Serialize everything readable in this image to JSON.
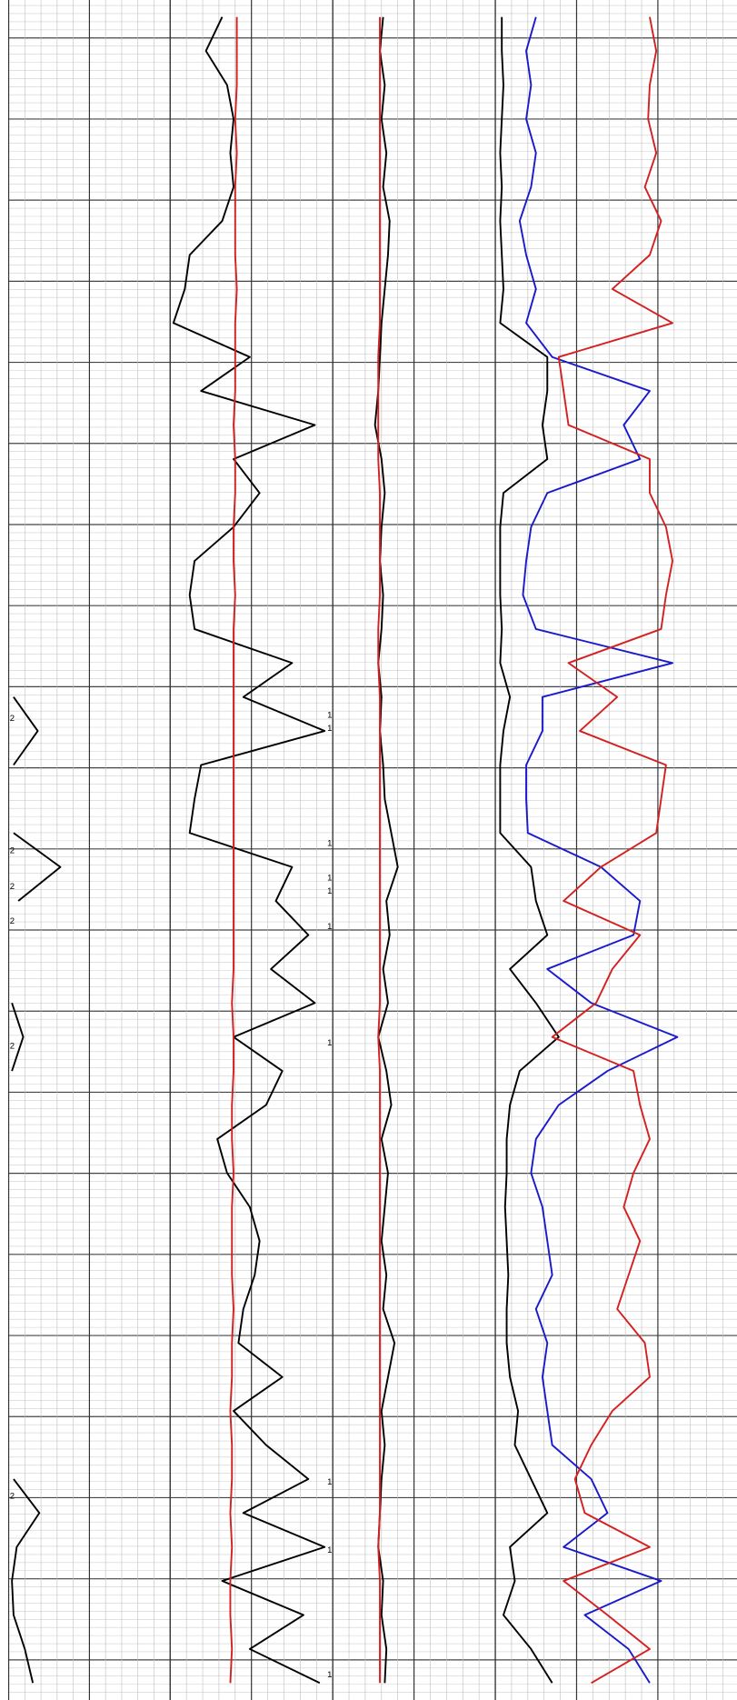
{
  "chart_data": [
    {
      "type": "line",
      "xlim": [
        0,
        10
      ],
      "xticks": [
        0,
        1,
        2,
        3,
        4,
        5,
        6,
        7,
        8,
        9,
        10
      ],
      "grid": true,
      "categories": [
        null,
        null,
        null,
        null,
        null,
        null,
        null,
        null,
        null,
        null,
        null,
        null,
        null,
        null,
        null,
        null,
        null,
        null,
        null,
        null,
        null,
        null,
        null,
        null,
        null,
        null,
        null,
        null,
        null,
        null,
        null,
        null,
        null,
        null,
        null,
        null,
        null,
        null,
        null,
        null,
        null,
        null,
        null,
        null,
        null,
        null,
        null,
        null,
        null,
        null
      ],
      "series": [
        {
          "color": "#000000",
          "values": [
            null,
            null,
            null,
            null,
            null,
            null,
            null,
            null,
            null,
            null,
            null,
            null,
            null,
            null,
            null,
            null,
            null,
            null,
            null,
            null,
            0.3,
            1.8,
            0.3,
            null,
            0.3,
            3.2,
            0.6,
            null,
            null,
            0.2,
            0.9,
            0.2,
            null,
            null,
            null,
            null,
            null,
            null,
            null,
            null,
            null,
            null,
            null,
            0.3,
            1.9,
            0.5,
            0.2,
            0.3,
            1.0,
            1.5
          ]
        }
      ],
      "annotations": [
        "2",
        "2",
        "2",
        "2",
        "2",
        "2"
      ]
    },
    {
      "type": "line",
      "xlim": [
        0,
        10
      ],
      "xticks": [
        0,
        1,
        2,
        3,
        4,
        5,
        6,
        7,
        8,
        9,
        10
      ],
      "grid": true,
      "categories": [
        null,
        null,
        null,
        null,
        null,
        null,
        null,
        null,
        null,
        null,
        null,
        null,
        null,
        null,
        null,
        null,
        null,
        null,
        null,
        null,
        null,
        null,
        null,
        null,
        null,
        null,
        null,
        null,
        null,
        null,
        null,
        null,
        null,
        null,
        null,
        null,
        null,
        null,
        null,
        null,
        null,
        null,
        null,
        null,
        null,
        null,
        null,
        null,
        null,
        null
      ],
      "series": [
        {
          "color": "#000000",
          "values": [
            3.2,
            2.2,
            3.5,
            3.9,
            3.7,
            3.9,
            3.2,
            1.2,
            0.9,
            0.2,
            4.9,
            1.9,
            8.9,
            3.9,
            5.5,
            3.9,
            1.5,
            1.2,
            1.5,
            7.5,
            4.5,
            9.5,
            1.9,
            1.5,
            1.2,
            7.5,
            6.5,
            8.5,
            6.2,
            8.9,
            3.9,
            6.9,
            5.9,
            2.9,
            3.5,
            4.9,
            5.5,
            5.2,
            4.5,
            4.2,
            6.9,
            3.9,
            5.9,
            8.5,
            4.5,
            9.5,
            3.2,
            8.2,
            4.9,
            9.2
          ]
        },
        {
          "color": "#d42020",
          "values": [
            4.1,
            4.1,
            4.1,
            4.0,
            4.1,
            4.0,
            4.0,
            4.0,
            4.1,
            4.0,
            4.0,
            4.0,
            3.9,
            4.0,
            4.0,
            3.9,
            3.9,
            4.0,
            3.9,
            3.9,
            3.9,
            3.9,
            3.9,
            3.9,
            3.9,
            3.9,
            3.9,
            3.9,
            3.9,
            3.8,
            3.9,
            3.9,
            3.8,
            3.8,
            3.9,
            3.8,
            3.8,
            3.8,
            3.9,
            3.8,
            3.8,
            3.7,
            3.8,
            3.8,
            3.7,
            3.8,
            3.7,
            3.7,
            3.8,
            3.7
          ]
        }
      ],
      "annotations": [
        "1",
        "1",
        "1",
        "1",
        "1",
        "1",
        "1",
        "1",
        "1",
        "1"
      ]
    },
    {
      "type": "line",
      "xlim": [
        0,
        10
      ],
      "xticks": [
        0,
        1,
        2,
        3,
        4,
        5,
        6,
        7,
        8,
        9,
        10
      ],
      "grid": true,
      "categories": [
        null,
        null,
        null,
        null,
        null,
        null,
        null,
        null,
        null,
        null,
        null,
        null,
        null,
        null,
        null,
        null,
        null,
        null,
        null,
        null,
        null,
        null,
        null,
        null,
        null,
        null,
        null,
        null,
        null,
        null,
        null,
        null,
        null,
        null,
        null,
        null,
        null,
        null,
        null,
        null,
        null,
        null,
        null,
        null,
        null,
        null,
        null,
        null,
        null,
        null
      ],
      "series": [
        {
          "color": "#000000",
          "values": [
            3.1,
            2.9,
            3.2,
            3.0,
            3.3,
            3.1,
            3.5,
            3.4,
            3.2,
            3.0,
            2.9,
            2.8,
            2.6,
            3.0,
            3.2,
            3.0,
            2.9,
            3.1,
            3.0,
            2.8,
            3.0,
            2.9,
            3.1,
            3.2,
            3.6,
            4.0,
            3.3,
            3.5,
            3.1,
            3.4,
            2.8,
            3.3,
            3.6,
            3.0,
            3.4,
            3.2,
            3.0,
            3.3,
            3.1,
            3.8,
            3.4,
            3.0,
            3.2,
            3.0,
            2.9,
            2.8,
            3.1,
            3.0,
            3.3,
            3.2
          ]
        },
        {
          "color": "#d42020",
          "values": [
            2.9,
            2.9,
            2.9,
            2.9,
            2.9,
            2.9,
            2.9,
            2.9,
            2.9,
            2.9,
            2.8,
            2.8,
            2.8,
            2.8,
            2.9,
            2.9,
            2.9,
            2.9,
            2.8,
            2.8,
            2.9,
            2.9,
            2.9,
            2.9,
            2.9,
            2.9,
            2.9,
            2.9,
            2.9,
            2.9,
            2.8,
            2.9,
            2.9,
            2.9,
            2.9,
            2.9,
            2.9,
            2.9,
            2.9,
            2.9,
            2.9,
            2.9,
            2.9,
            2.9,
            2.9,
            2.8,
            2.9,
            2.9,
            2.9,
            2.9
          ]
        }
      ]
    },
    {
      "type": "line",
      "xlim": [
        0,
        15
      ],
      "xticks": [
        0,
        1,
        2,
        3,
        4,
        5,
        6,
        7,
        8,
        9,
        10,
        11,
        12,
        13,
        14,
        15
      ],
      "grid": true,
      "categories": [
        null,
        null,
        null,
        null,
        null,
        null,
        null,
        null,
        null,
        null,
        null,
        null,
        null,
        null,
        null,
        null,
        null,
        null,
        null,
        null,
        null,
        null,
        null,
        null,
        null,
        null,
        null,
        null,
        null,
        null,
        null,
        null,
        null,
        null,
        null,
        null,
        null,
        null,
        null,
        null,
        null,
        null,
        null,
        null,
        null,
        null,
        null,
        null,
        null,
        null
      ],
      "series": [
        {
          "color": "#000000",
          "values": [
            0.4,
            0.4,
            0.5,
            0.4,
            0.3,
            0.4,
            0.3,
            0.4,
            0.5,
            0.3,
            3.2,
            3.2,
            2.9,
            3.2,
            0.5,
            0.3,
            0.3,
            0.3,
            0.4,
            0.3,
            0.9,
            0.5,
            0.3,
            0.3,
            0.3,
            2.2,
            2.5,
            3.2,
            0.9,
            2.5,
            3.9,
            1.5,
            0.9,
            0.7,
            0.7,
            0.6,
            0.7,
            0.8,
            0.7,
            0.7,
            0.9,
            1.4,
            1.2,
            2.2,
            3.2,
            0.9,
            1.2,
            0.5,
            2.2,
            3.5
          ]
        },
        {
          "color": "#1a1acc",
          "values": [
            2.5,
            1.9,
            2.2,
            1.9,
            2.5,
            2.2,
            1.5,
            1.9,
            2.5,
            1.9,
            3.5,
            9.5,
            7.9,
            8.9,
            3.2,
            2.2,
            1.9,
            1.7,
            2.5,
            10.9,
            2.9,
            2.9,
            1.9,
            1.9,
            2.0,
            6.5,
            8.9,
            8.5,
            3.2,
            5.9,
            11.2,
            6.9,
            3.9,
            2.5,
            2.2,
            2.9,
            3.2,
            3.5,
            2.5,
            3.2,
            2.9,
            3.2,
            3.5,
            5.9,
            6.9,
            4.2,
            10.2,
            5.5,
            8.2,
            9.5
          ]
        },
        {
          "color": "#d42020",
          "values": [
            9.5,
            9.9,
            9.5,
            9.4,
            9.9,
            9.2,
            10.2,
            9.5,
            7.2,
            10.9,
            3.9,
            4.2,
            4.5,
            9.5,
            9.5,
            10.5,
            10.9,
            10.5,
            10.2,
            4.5,
            7.5,
            5.2,
            10.5,
            10.2,
            9.9,
            6.5,
            4.2,
            8.9,
            7.2,
            6.2,
            3.5,
            8.5,
            8.9,
            9.5,
            8.5,
            7.9,
            8.9,
            8.2,
            7.5,
            9.2,
            9.5,
            7.2,
            5.9,
            4.9,
            5.5,
            9.5,
            4.2,
            6.9,
            9.5,
            5.9
          ]
        }
      ]
    }
  ]
}
